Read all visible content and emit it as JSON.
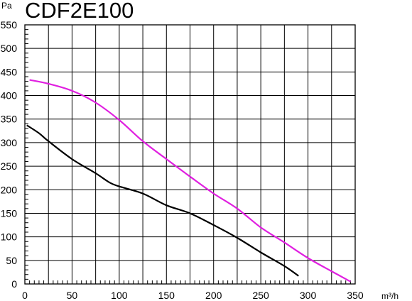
{
  "chart_data": {
    "type": "line",
    "title": "CDF2E100",
    "xlabel": "m³/h",
    "ylabel": "Pa",
    "xlim": [
      0,
      350
    ],
    "ylim": [
      0,
      550
    ],
    "x_ticks": [
      0,
      50,
      100,
      150,
      200,
      250,
      300,
      350
    ],
    "y_ticks": [
      0,
      50,
      100,
      150,
      200,
      250,
      300,
      350,
      400,
      450,
      500,
      550
    ],
    "grid": true,
    "legend": "none",
    "series": [
      {
        "color": "#e020e0",
        "points": [
          [
            5,
            433
          ],
          [
            25,
            425
          ],
          [
            50,
            410
          ],
          [
            75,
            385
          ],
          [
            100,
            348
          ],
          [
            125,
            303
          ],
          [
            150,
            265
          ],
          [
            175,
            228
          ],
          [
            200,
            192
          ],
          [
            225,
            160
          ],
          [
            250,
            120
          ],
          [
            275,
            88
          ],
          [
            300,
            55
          ],
          [
            325,
            27
          ],
          [
            345,
            5
          ]
        ]
      },
      {
        "color": "#000000",
        "points": [
          [
            2,
            337
          ],
          [
            15,
            320
          ],
          [
            25,
            303
          ],
          [
            50,
            265
          ],
          [
            75,
            235
          ],
          [
            90,
            215
          ],
          [
            100,
            207
          ],
          [
            125,
            192
          ],
          [
            150,
            167
          ],
          [
            175,
            150
          ],
          [
            200,
            125
          ],
          [
            225,
            98
          ],
          [
            250,
            67
          ],
          [
            275,
            38
          ],
          [
            290,
            17
          ]
        ]
      }
    ]
  }
}
